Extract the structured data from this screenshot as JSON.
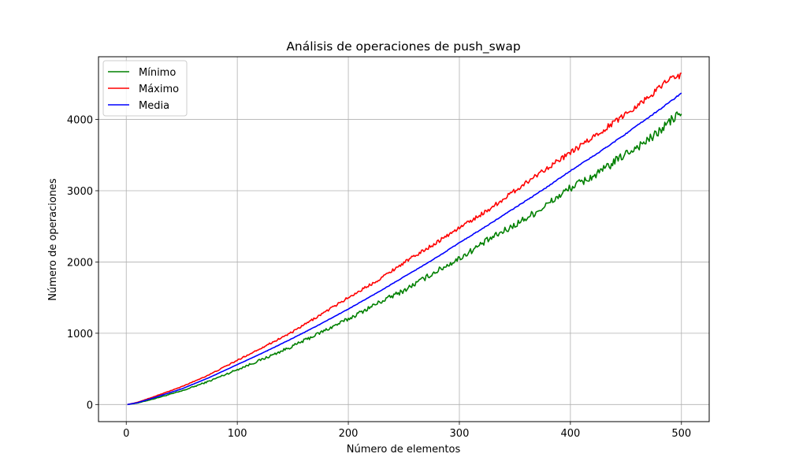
{
  "chart_data": {
    "type": "line",
    "title": "Análisis de operaciones de push_swap",
    "xlabel": "Número de elementos",
    "ylabel": "Número de operaciones",
    "xlim": [
      -25,
      525
    ],
    "ylim": [
      -240,
      4880
    ],
    "xticks": [
      0,
      100,
      200,
      300,
      400,
      500
    ],
    "yticks": [
      0,
      1000,
      2000,
      3000,
      4000
    ],
    "grid": true,
    "legend_position": "upper left",
    "series": [
      {
        "name": "Mínimo",
        "color": "#008000",
        "points": [
          [
            1,
            0
          ],
          [
            10,
            20
          ],
          [
            25,
            80
          ],
          [
            50,
            190
          ],
          [
            75,
            330
          ],
          [
            100,
            490
          ],
          [
            125,
            650
          ],
          [
            150,
            820
          ],
          [
            175,
            1010
          ],
          [
            200,
            1200
          ],
          [
            225,
            1410
          ],
          [
            250,
            1600
          ],
          [
            275,
            1830
          ],
          [
            300,
            2050
          ],
          [
            325,
            2300
          ],
          [
            350,
            2520
          ],
          [
            375,
            2760
          ],
          [
            400,
            3040
          ],
          [
            425,
            3240
          ],
          [
            450,
            3520
          ],
          [
            475,
            3760
          ],
          [
            490,
            3980
          ],
          [
            500,
            4100
          ]
        ],
        "noise": 70
      },
      {
        "name": "Máximo",
        "color": "#ff0000",
        "points": [
          [
            1,
            0
          ],
          [
            10,
            30
          ],
          [
            25,
            110
          ],
          [
            50,
            250
          ],
          [
            75,
            420
          ],
          [
            100,
            620
          ],
          [
            125,
            820
          ],
          [
            150,
            1020
          ],
          [
            175,
            1260
          ],
          [
            200,
            1500
          ],
          [
            225,
            1730
          ],
          [
            250,
            1990
          ],
          [
            275,
            2230
          ],
          [
            300,
            2480
          ],
          [
            325,
            2720
          ],
          [
            350,
            3000
          ],
          [
            375,
            3280
          ],
          [
            400,
            3530
          ],
          [
            425,
            3800
          ],
          [
            450,
            4080
          ],
          [
            475,
            4370
          ],
          [
            490,
            4600
          ],
          [
            500,
            4610
          ]
        ],
        "noise": 45
      },
      {
        "name": "Media",
        "color": "#0000ff",
        "points": [
          [
            1,
            0
          ],
          [
            10,
            25
          ],
          [
            25,
            95
          ],
          [
            50,
            220
          ],
          [
            75,
            380
          ],
          [
            100,
            560
          ],
          [
            125,
            740
          ],
          [
            150,
            930
          ],
          [
            175,
            1130
          ],
          [
            200,
            1340
          ],
          [
            225,
            1560
          ],
          [
            250,
            1790
          ],
          [
            275,
            2020
          ],
          [
            300,
            2270
          ],
          [
            325,
            2510
          ],
          [
            350,
            2760
          ],
          [
            375,
            3010
          ],
          [
            400,
            3280
          ],
          [
            425,
            3530
          ],
          [
            450,
            3800
          ],
          [
            475,
            4080
          ],
          [
            490,
            4250
          ],
          [
            500,
            4370
          ]
        ],
        "noise": 8
      }
    ]
  }
}
